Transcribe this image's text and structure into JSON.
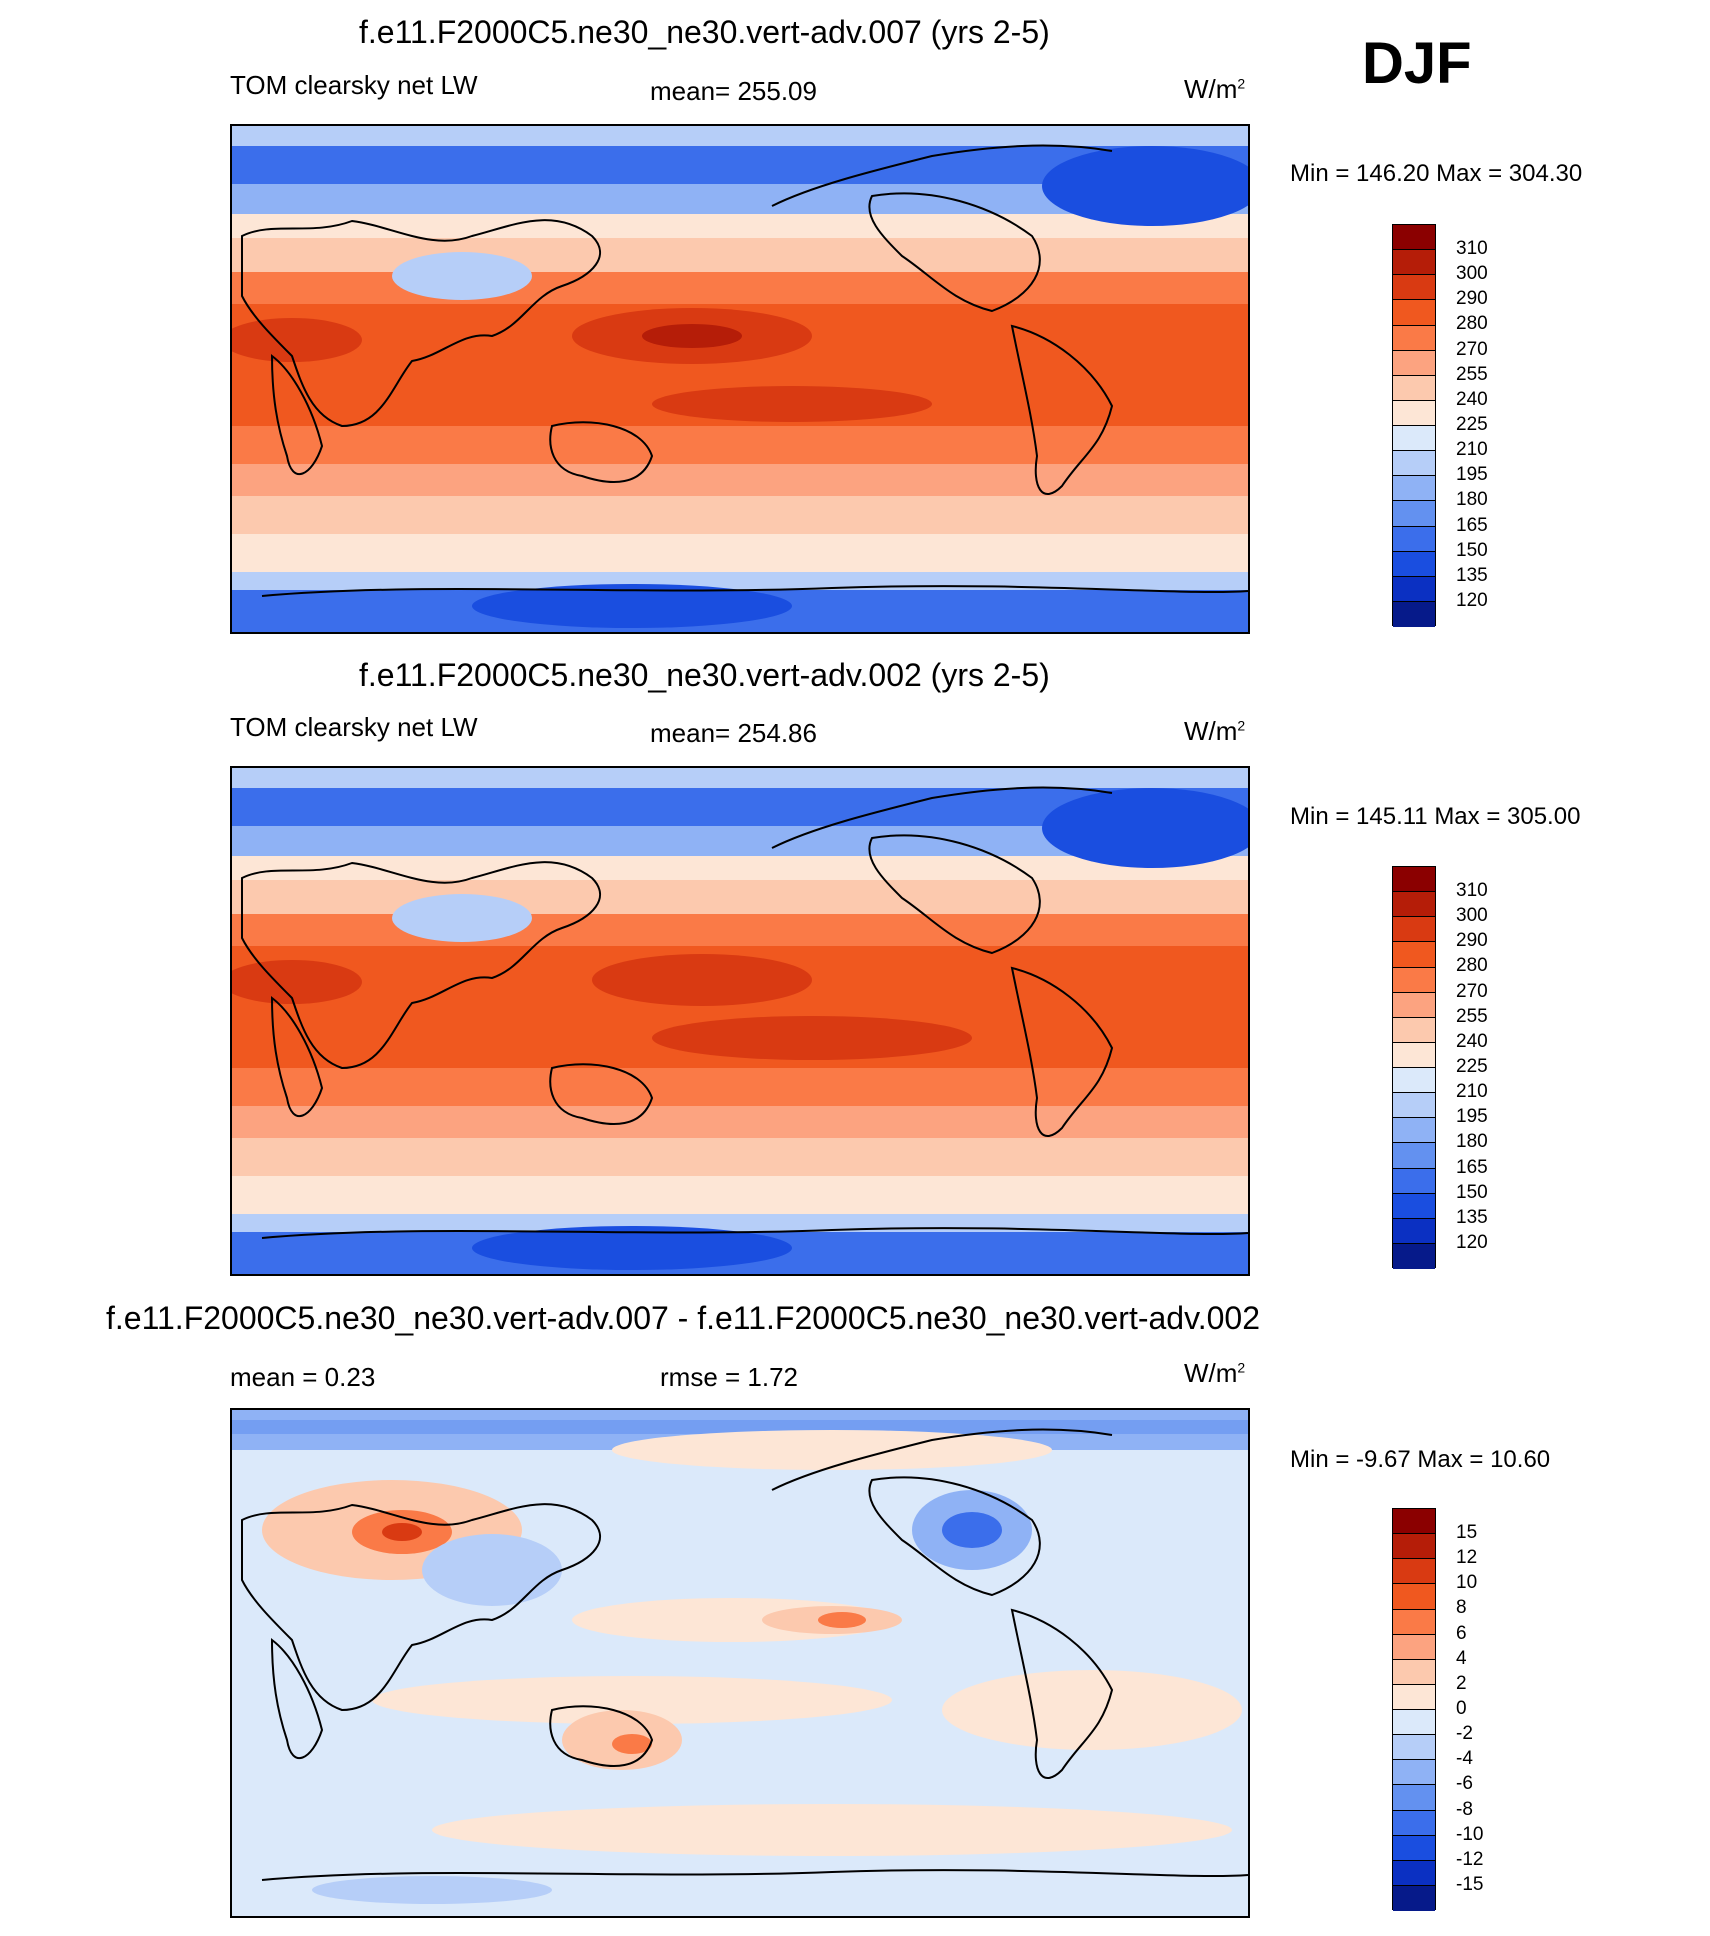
{
  "season": "DJF",
  "panels": [
    {
      "title": "f.e11.F2000C5.ne30_ne30.vert-adv.007 (yrs 2-5)",
      "left_label": "TOM clearsky net LW",
      "center_label": "mean= 255.09",
      "units": "W/m",
      "units_sup": "2",
      "minmax": "Min = 146.20 Max = 304.30",
      "levels": [
        "310",
        "300",
        "290",
        "280",
        "270",
        "255",
        "240",
        "225",
        "210",
        "195",
        "180",
        "165",
        "150",
        "135",
        "120"
      ],
      "colors": [
        "#8b0000",
        "#b51d08",
        "#d93a12",
        "#f0581f",
        "#fa7a47",
        "#fca380",
        "#fcc9ae",
        "#fde6d6",
        "#dbe9fa",
        "#b6cef8",
        "#8fb2f5",
        "#6391f0",
        "#3b6eeb",
        "#1a4ee0",
        "#0b30c2",
        "#061a8a"
      ]
    },
    {
      "title": "f.e11.F2000C5.ne30_ne30.vert-adv.002 (yrs 2-5)",
      "left_label": "TOM clearsky net LW",
      "center_label": "mean= 254.86",
      "units": "W/m",
      "units_sup": "2",
      "minmax": "Min = 145.11 Max = 305.00",
      "levels": [
        "310",
        "300",
        "290",
        "280",
        "270",
        "255",
        "240",
        "225",
        "210",
        "195",
        "180",
        "165",
        "150",
        "135",
        "120"
      ],
      "colors": [
        "#8b0000",
        "#b51d08",
        "#d93a12",
        "#f0581f",
        "#fa7a47",
        "#fca380",
        "#fcc9ae",
        "#fde6d6",
        "#dbe9fa",
        "#b6cef8",
        "#8fb2f5",
        "#6391f0",
        "#3b6eeb",
        "#1a4ee0",
        "#0b30c2",
        "#061a8a"
      ]
    },
    {
      "title": "f.e11.F2000C5.ne30_ne30.vert-adv.007 - f.e11.F2000C5.ne30_ne30.vert-adv.002",
      "left_label": "mean =   0.23",
      "center_label": "rmse =   1.72",
      "units": "W/m",
      "units_sup": "2",
      "minmax": "Min =  -9.67 Max =  10.60",
      "levels": [
        "15",
        "12",
        "10",
        "8",
        "6",
        "4",
        "2",
        "0",
        "-2",
        "-4",
        "-6",
        "-8",
        "-10",
        "-12",
        "-15"
      ],
      "colors": [
        "#8b0000",
        "#b51d08",
        "#d93a12",
        "#f0581f",
        "#fa7a47",
        "#fca380",
        "#fcc9ae",
        "#fde6d6",
        "#dbe9fa",
        "#b6cef8",
        "#8fb2f5",
        "#6391f0",
        "#3b6eeb",
        "#1a4ee0",
        "#0b30c2",
        "#061a8a"
      ]
    }
  ]
}
